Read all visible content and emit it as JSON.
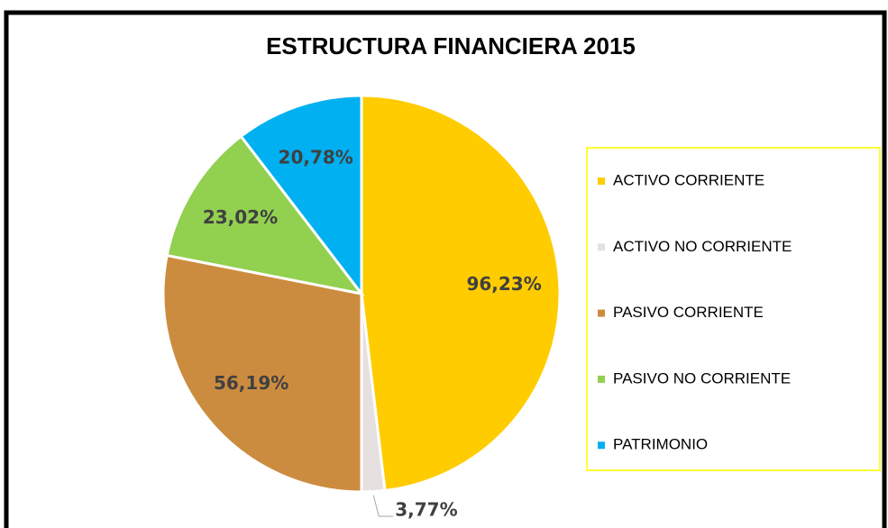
{
  "chart_data": {
    "type": "pie",
    "title": "ESTRUCTURA FINANCIERA 2015",
    "categories": [
      "ACTIVO CORRIENTE",
      "ACTIVO NO CORRIENTE",
      "PASIVO CORRIENTE",
      "PASIVO NO CORRIENTE",
      "PATRIMONIO"
    ],
    "values": [
      96.23,
      3.77,
      56.19,
      23.02,
      20.78
    ],
    "value_labels": [
      "96,23%",
      "3,77%",
      "56,19%",
      "23,02%",
      "20,78%"
    ],
    "colors": [
      "#FFCC00",
      "#E7E0E0",
      "#CC8C3F",
      "#92D050",
      "#00B0F0"
    ],
    "legend": "right"
  }
}
